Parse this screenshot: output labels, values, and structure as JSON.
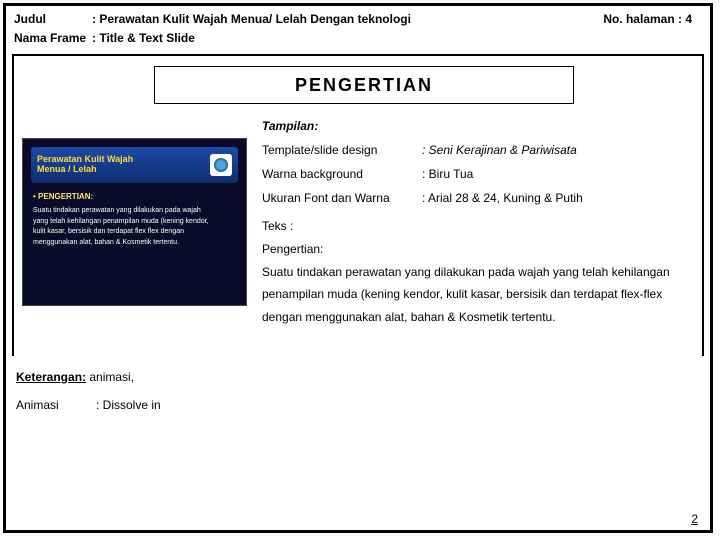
{
  "header": {
    "judul_label": "Judul",
    "judul_value": ": Perawatan Kulit Wajah Menua/ Lelah Dengan teknologi",
    "page_label": "No. halaman  : 4",
    "nama_frame_label": "Nama Frame",
    "nama_frame_value": ": Title & Text Slide"
  },
  "title_banner": "PENGERTIAN",
  "thumb": {
    "title_line1": "Perawatan Kulit Wajah",
    "title_line2": "Menua / Lelah",
    "heading": "• PENGERTIAN:",
    "line1": "Suatu tindakan perawatan yang dilakukan pada wajah",
    "line2": "yang telah kehilangan penampilan muda (kening kendor,",
    "line3": "kulit kasar, bersisik dan terdapat flex flex dengan",
    "line4": "menggunakan alat, bahan & Kosmetik tertentu."
  },
  "details": {
    "heading": "Tampilan:",
    "rows": [
      {
        "label": "Template/slide design",
        "value": ": Seni Kerajinan & Pariwisata",
        "italic": true
      },
      {
        "label": "Warna background",
        "value": ": Biru Tua",
        "italic": false
      },
      {
        "label": "Ukuran Font dan Warna",
        "value": ": Arial 28 & 24, Kuning & Putih",
        "italic": false
      }
    ],
    "teks_label": "Teks :",
    "teks_sub": "Pengertian:",
    "body": "Suatu tindakan perawatan yang dilakukan pada wajah yang telah kehilangan penampilan muda (kening kendor, kulit kasar, bersisik dan terdapat flex-flex dengan menggunakan alat, bahan & Kosmetik tertentu."
  },
  "footer": {
    "title": "Keterangan:",
    "title_after": " animasi,",
    "row_label": "Animasi",
    "row_value": ": Dissolve in"
  },
  "page_number": "2"
}
